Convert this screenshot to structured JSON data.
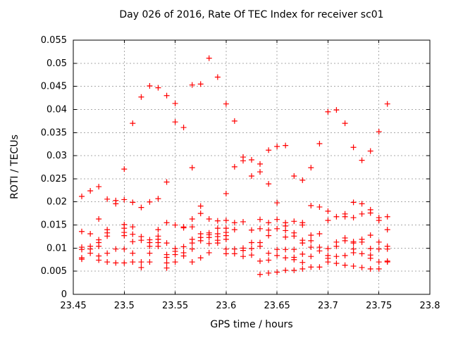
{
  "chart_data": {
    "type": "scatter",
    "title": "Day 026 of 2016, Rate Of TEC Index for receiver sc01",
    "xlabel": "GPS time / hours",
    "ylabel": "ROTI / TECUs",
    "xlim": [
      23.45,
      23.8
    ],
    "ylim": [
      0,
      0.055
    ],
    "grid": true,
    "legend": "none",
    "marker": {
      "shape": "plus",
      "color": "#ff0000",
      "half_size": 4,
      "stroke_width": 1.2
    },
    "grid_color": "#a8a8a8",
    "frame_color": "#000000",
    "xticks": [
      {
        "v": 23.45,
        "label": "23.45"
      },
      {
        "v": 23.5,
        "label": "23.5"
      },
      {
        "v": 23.55,
        "label": "23.55"
      },
      {
        "v": 23.6,
        "label": "23.6"
      },
      {
        "v": 23.65,
        "label": "23.65"
      },
      {
        "v": 23.7,
        "label": "23.7"
      },
      {
        "v": 23.75,
        "label": "23.75"
      },
      {
        "v": 23.8,
        "label": "23.8"
      }
    ],
    "yticks": [
      {
        "v": 0,
        "label": "0"
      },
      {
        "v": 0.005,
        "label": "0.005"
      },
      {
        "v": 0.01,
        "label": "0.01"
      },
      {
        "v": 0.015,
        "label": "0.015"
      },
      {
        "v": 0.02,
        "label": "0.02"
      },
      {
        "v": 0.025,
        "label": "0.025"
      },
      {
        "v": 0.03,
        "label": "0.03"
      },
      {
        "v": 0.035,
        "label": "0.035"
      },
      {
        "v": 0.04,
        "label": "0.04"
      },
      {
        "v": 0.045,
        "label": "0.045"
      },
      {
        "v": 0.05,
        "label": "0.05"
      },
      {
        "v": 0.055,
        "label": "0.055"
      }
    ],
    "points": [
      {
        "x": 23.4583,
        "y": [
          0.0212,
          0.0136,
          0.0102,
          0.0097,
          0.0079,
          0.0076
        ]
      },
      {
        "x": 23.4667,
        "y": [
          0.0224,
          0.0131,
          0.0104,
          0.0098,
          0.0089
        ]
      },
      {
        "x": 23.475,
        "y": [
          0.0233,
          0.0163,
          0.0118,
          0.0112,
          0.0104,
          0.0083,
          0.0074
        ]
      },
      {
        "x": 23.4833,
        "y": [
          0.0206,
          0.014,
          0.0133,
          0.0126,
          0.0089,
          0.007
        ]
      },
      {
        "x": 23.4917,
        "y": [
          0.0203,
          0.0196,
          0.0098,
          0.0068
        ]
      },
      {
        "x": 23.5,
        "y": [
          0.0271,
          0.0205,
          0.0151,
          0.0143,
          0.0134,
          0.0127,
          0.0098,
          0.0068
        ]
      },
      {
        "x": 23.5083,
        "y": [
          0.037,
          0.0199,
          0.0146,
          0.013,
          0.0114,
          0.0089,
          0.007
        ]
      },
      {
        "x": 23.5167,
        "y": [
          0.0427,
          0.0188,
          0.0125,
          0.0117,
          0.007,
          0.0058
        ]
      },
      {
        "x": 23.525,
        "y": [
          0.0451,
          0.02,
          0.0118,
          0.0112,
          0.0104,
          0.0089,
          0.007
        ]
      },
      {
        "x": 23.5333,
        "y": [
          0.0447,
          0.0207,
          0.014,
          0.0126,
          0.0119,
          0.0112,
          0.0104
        ]
      },
      {
        "x": 23.5417,
        "y": [
          0.043,
          0.0243,
          0.0155,
          0.0111,
          0.0086,
          0.008,
          0.0068,
          0.0057
        ]
      },
      {
        "x": 23.55,
        "y": [
          0.0413,
          0.0373,
          0.015,
          0.0099,
          0.0093,
          0.0086,
          0.007
        ]
      },
      {
        "x": 23.5583,
        "y": [
          0.0361,
          0.0146,
          0.0144,
          0.0103,
          0.009,
          0.0083
        ]
      },
      {
        "x": 23.5667,
        "y": [
          0.0453,
          0.0274,
          0.0163,
          0.0146,
          0.0119,
          0.0111,
          0.0098,
          0.007
        ]
      },
      {
        "x": 23.575,
        "y": [
          0.0455,
          0.0191,
          0.0175,
          0.0131,
          0.0123,
          0.0116,
          0.0079
        ]
      },
      {
        "x": 23.5833,
        "y": [
          0.0511,
          0.0163,
          0.0133,
          0.0129,
          0.0123,
          0.011,
          0.009
        ]
      },
      {
        "x": 23.5917,
        "y": [
          0.047,
          0.0159,
          0.0143,
          0.0131,
          0.0125,
          0.0117,
          0.0111
        ]
      },
      {
        "x": 23.6,
        "y": [
          0.0412,
          0.0218,
          0.016,
          0.0143,
          0.0134,
          0.0127,
          0.0119,
          0.0098,
          0.0088
        ]
      },
      {
        "x": 23.6083,
        "y": [
          0.0375,
          0.0276,
          0.0155,
          0.014,
          0.0098,
          0.0088
        ]
      },
      {
        "x": 23.6167,
        "y": [
          0.0297,
          0.0289,
          0.0157,
          0.01,
          0.0095,
          0.0082
        ]
      },
      {
        "x": 23.625,
        "y": [
          0.0291,
          0.0256,
          0.0139,
          0.0112,
          0.0099,
          0.0085
        ]
      },
      {
        "x": 23.6333,
        "y": [
          0.0282,
          0.0265,
          0.0162,
          0.0142,
          0.0112,
          0.0104,
          0.0072,
          0.0043
        ]
      },
      {
        "x": 23.6417,
        "y": [
          0.0312,
          0.0239,
          0.0155,
          0.0139,
          0.0127,
          0.0089,
          0.0074,
          0.0046
        ]
      },
      {
        "x": 23.65,
        "y": [
          0.032,
          0.0198,
          0.0162,
          0.0142,
          0.0097,
          0.0084,
          0.0048
        ]
      },
      {
        "x": 23.6583,
        "y": [
          0.0322,
          0.0155,
          0.0148,
          0.0138,
          0.0124,
          0.0097,
          0.0079,
          0.0052
        ]
      },
      {
        "x": 23.6667,
        "y": [
          0.0256,
          0.0158,
          0.0133,
          0.0126,
          0.0097,
          0.008,
          0.0075,
          0.0052
        ]
      },
      {
        "x": 23.675,
        "y": [
          0.0247,
          0.0155,
          0.015,
          0.0117,
          0.0111,
          0.0087,
          0.0069,
          0.0055
        ]
      },
      {
        "x": 23.6833,
        "y": [
          0.0274,
          0.0192,
          0.0128,
          0.0116,
          0.0102,
          0.0082,
          0.0059
        ]
      },
      {
        "x": 23.6917,
        "y": [
          0.0326,
          0.0189,
          0.0131,
          0.0102,
          0.0094,
          0.0059
        ]
      },
      {
        "x": 23.7,
        "y": [
          0.0395,
          0.018,
          0.016,
          0.0099,
          0.0084,
          0.0078,
          0.007
        ]
      },
      {
        "x": 23.7083,
        "y": [
          0.0399,
          0.0168,
          0.0113,
          0.0104,
          0.0082,
          0.0067
        ]
      },
      {
        "x": 23.7167,
        "y": [
          0.037,
          0.0174,
          0.0168,
          0.0122,
          0.0116,
          0.0084,
          0.0063
        ]
      },
      {
        "x": 23.725,
        "y": [
          0.0318,
          0.0199,
          0.0166,
          0.0114,
          0.0111,
          0.0098,
          0.009,
          0.0061
        ]
      },
      {
        "x": 23.7333,
        "y": [
          0.029,
          0.0196,
          0.0174,
          0.0119,
          0.0113,
          0.0088,
          0.0058
        ]
      },
      {
        "x": 23.7417,
        "y": [
          0.031,
          0.0183,
          0.0176,
          0.0128,
          0.0099,
          0.0085,
          0.0078,
          0.0055
        ]
      },
      {
        "x": 23.75,
        "y": [
          0.0352,
          0.0166,
          0.016,
          0.0113,
          0.0098,
          0.007,
          0.0055
        ]
      },
      {
        "x": 23.7583,
        "y": [
          0.0412,
          0.0168,
          0.014,
          0.0104,
          0.0098,
          0.0072,
          0.007
        ]
      }
    ]
  }
}
